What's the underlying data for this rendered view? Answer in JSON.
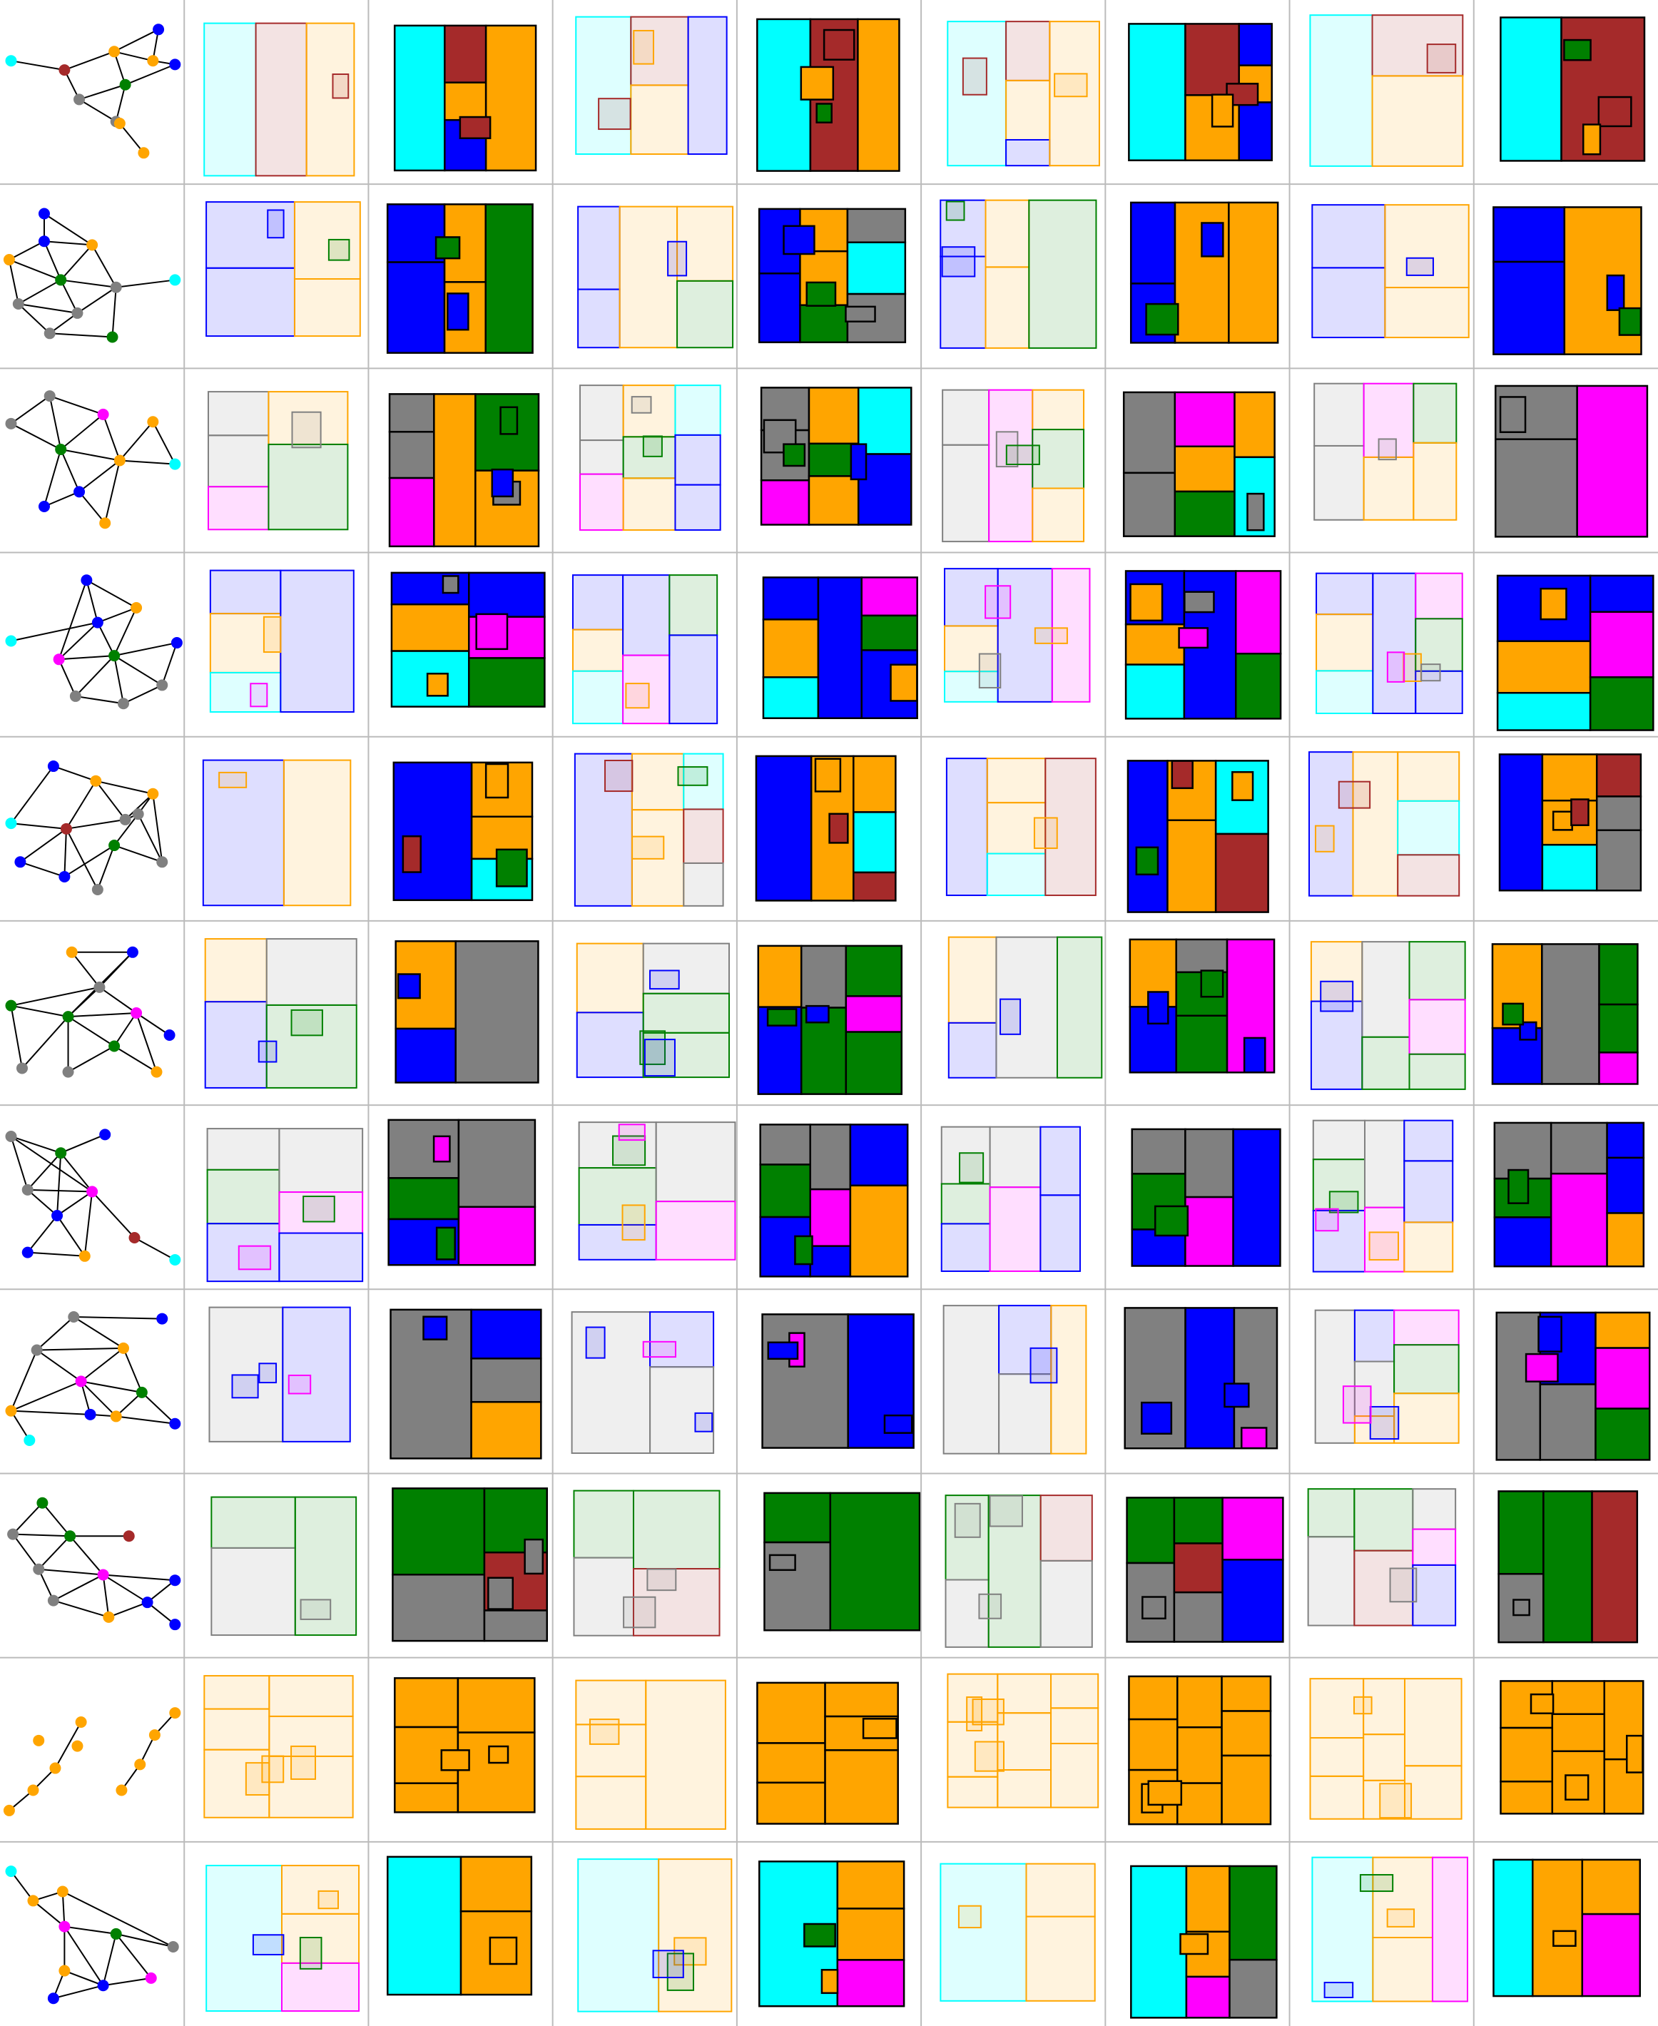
{
  "colors": {
    "orange": "#FFA500",
    "cyan": "#00FFFF",
    "brown": "#A52A2A",
    "blue": "#0000FF",
    "green": "#008000",
    "gray": "#808080",
    "magenta": "#FF00FF",
    "outline": "#000000",
    "gridline": "#BBBBBB"
  },
  "grid": {
    "rows": 11,
    "columns": 9,
    "column_kinds": [
      "graph",
      "outline-plan",
      "filled-plan",
      "outline-plan",
      "filled-plan",
      "outline-plan",
      "filled-plan",
      "outline-plan",
      "filled-plan"
    ]
  },
  "graphs": [
    {
      "nodes": [
        "cyan",
        "brown",
        "orange",
        "blue",
        "orange",
        "blue",
        "gray",
        "green",
        "gray",
        "orange",
        "orange"
      ]
    },
    {
      "nodes": [
        "blue",
        "blue",
        "orange",
        "orange",
        "green",
        "gray",
        "cyan",
        "gray",
        "gray",
        "gray",
        "green"
      ]
    },
    {
      "nodes": [
        "gray",
        "gray",
        "magenta",
        "orange",
        "green",
        "orange",
        "cyan",
        "blue",
        "blue",
        "orange"
      ]
    },
    {
      "nodes": [
        "blue",
        "orange",
        "cyan",
        "blue",
        "magenta",
        "green",
        "blue",
        "gray",
        "gray",
        "gray"
      ]
    },
    {
      "nodes": [
        "blue",
        "orange",
        "orange",
        "cyan",
        "brown",
        "gray",
        "gray",
        "green",
        "blue",
        "blue",
        "gray",
        "gray"
      ]
    },
    {
      "nodes": [
        "orange",
        "blue",
        "gray",
        "green",
        "green",
        "magenta",
        "green",
        "blue",
        "gray",
        "gray",
        "orange"
      ]
    },
    {
      "nodes": [
        "gray",
        "green",
        "blue",
        "gray",
        "magenta",
        "blue",
        "blue",
        "orange",
        "brown",
        "cyan"
      ]
    },
    {
      "nodes": [
        "gray",
        "blue",
        "gray",
        "orange",
        "magenta",
        "green",
        "orange",
        "blue",
        "orange",
        "blue",
        "cyan"
      ]
    },
    {
      "nodes": [
        "green",
        "gray",
        "green",
        "brown",
        "gray",
        "magenta",
        "blue",
        "gray",
        "orange",
        "blue",
        "blue"
      ]
    },
    {
      "nodes": [
        "orange",
        "orange",
        "orange",
        "orange",
        "orange",
        "orange",
        "orange",
        "orange",
        "orange",
        "orange"
      ]
    },
    {
      "nodes": [
        "cyan",
        "orange",
        "orange",
        "magenta",
        "green",
        "gray",
        "orange",
        "blue",
        "magenta",
        "blue"
      ]
    }
  ]
}
